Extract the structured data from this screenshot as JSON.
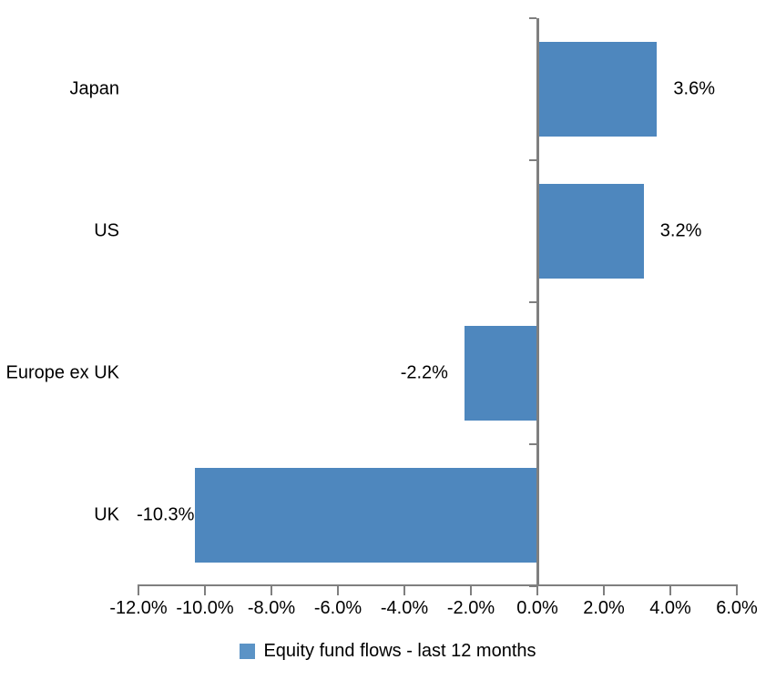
{
  "chart_data": {
    "type": "bar",
    "orientation": "horizontal",
    "categories": [
      "Japan",
      "US",
      "Europe ex UK",
      "UK"
    ],
    "series": [
      {
        "name": "Equity fund flows - last 12 months",
        "values": [
          3.6,
          3.2,
          -2.2,
          -10.3
        ]
      }
    ],
    "data_labels": [
      "3.6%",
      "3.2%",
      "-2.2%",
      "-10.3%"
    ],
    "xlim": [
      -12,
      6
    ],
    "x_tick_step": 2,
    "x_tick_labels": [
      "-12.0%",
      "-10.0%",
      "-8.0%",
      "-6.0%",
      "-4.0%",
      "-2.0%",
      "0.0%",
      "2.0%",
      "4.0%",
      "6.0%"
    ],
    "grid": false,
    "legend": {
      "position": "bottom",
      "label": "Equity fund flows - last 12 months"
    },
    "colors": {
      "bar": "#4e87be",
      "legend_marker": "#5b93c6",
      "axis": "#7f7f7f",
      "text": "#000000",
      "background": "#ffffff"
    }
  }
}
